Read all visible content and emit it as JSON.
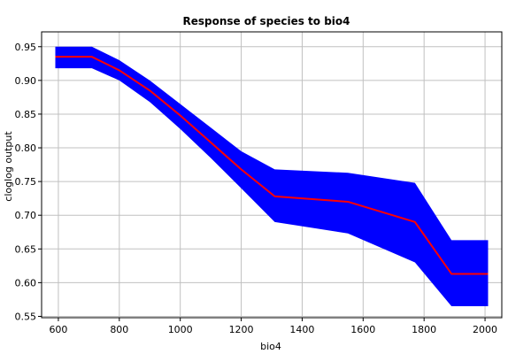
{
  "chart_data": {
    "type": "area",
    "title": "Response of species to bio4",
    "xlabel": "bio4",
    "ylabel": "cloglog output",
    "xlim": [
      545,
      2055
    ],
    "ylim": [
      0.548,
      0.972
    ],
    "xticks": [
      600,
      800,
      1000,
      1200,
      1400,
      1600,
      1800,
      2000
    ],
    "xtick_labels": [
      "600",
      "800",
      "1000",
      "1200",
      "1400",
      "1600",
      "1800",
      "2000"
    ],
    "yticks": [
      0.55,
      0.6,
      0.65,
      0.7,
      0.75,
      0.8,
      0.85,
      0.9,
      0.95
    ],
    "ytick_labels": [
      "0.55",
      "0.60",
      "0.65",
      "0.70",
      "0.75",
      "0.80",
      "0.85",
      "0.90",
      "0.95"
    ],
    "grid": true,
    "series": [
      {
        "role": "mean",
        "color": "#ff0000",
        "x": [
          590,
          710,
          800,
          900,
          1000,
          1100,
          1200,
          1310,
          1550,
          1770,
          1890,
          2010
        ],
        "y": [
          0.935,
          0.935,
          0.915,
          0.885,
          0.848,
          0.808,
          0.768,
          0.728,
          0.72,
          0.69,
          0.613,
          0.613
        ]
      },
      {
        "role": "confidence-band",
        "color": "#0000ff",
        "x": [
          590,
          710,
          800,
          900,
          1000,
          1100,
          1200,
          1310,
          1550,
          1770,
          1890,
          2010
        ],
        "upper": [
          0.95,
          0.95,
          0.93,
          0.9,
          0.865,
          0.83,
          0.795,
          0.768,
          0.763,
          0.748,
          0.663,
          0.663
        ],
        "lower": [
          0.918,
          0.918,
          0.9,
          0.868,
          0.828,
          0.785,
          0.74,
          0.69,
          0.673,
          0.63,
          0.565,
          0.565
        ]
      }
    ]
  }
}
